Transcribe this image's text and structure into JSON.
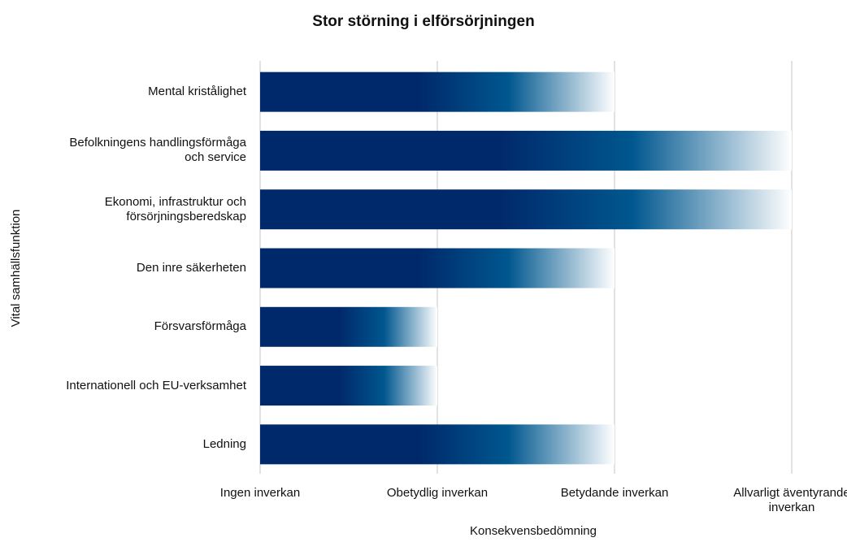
{
  "chart_data": {
    "type": "barh",
    "title": "Stor störning i elförsörjningen",
    "x_label": "Konsekvensbedömning",
    "y_label": "Vital samhällsfunktion",
    "categories": [
      "Mental kristålighet",
      "Befolkningens handlingsförmåga\noch service",
      "Ekonomi, infrastruktur och\nförsörjningsberedskap",
      "Den inre säkerheten",
      "Försvarsförmåga",
      "Internationell och EU-verksamhet",
      "Ledning"
    ],
    "values": [
      2,
      3,
      3,
      2,
      1,
      1,
      2
    ],
    "color": "#00296b",
    "xlim": [
      0,
      3
    ],
    "xticks": [
      {
        "value": 0,
        "label": "Ingen inverkan"
      },
      {
        "value": 1,
        "label": "Obetydlig inverkan"
      },
      {
        "value": 2,
        "label": "Betydande inverkan"
      },
      {
        "value": 3,
        "label": "Allvarligt äventyrande\ninverkan"
      }
    ],
    "grid": true
  }
}
